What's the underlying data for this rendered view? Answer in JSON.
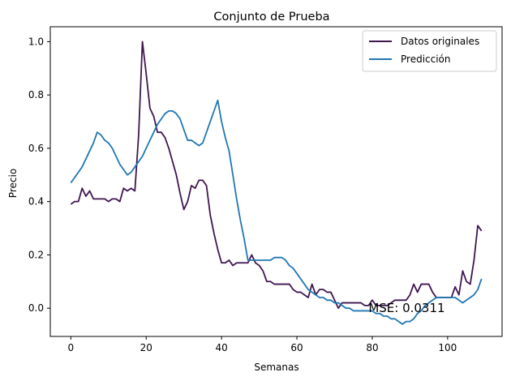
{
  "chart_data": {
    "type": "line",
    "title": "Conjunto de Prueba",
    "xlabel": "Semanas",
    "ylabel": "Precio",
    "xlim": [
      -5.45,
      114.45
    ],
    "ylim": [
      -0.106,
      1.056
    ],
    "x_ticks": [
      0,
      20,
      40,
      60,
      80,
      100
    ],
    "y_ticks": [
      0.0,
      0.2,
      0.4,
      0.6,
      0.8,
      1.0
    ],
    "x_tick_labels": [
      "0",
      "20",
      "40",
      "60",
      "80",
      "100"
    ],
    "y_tick_labels": [
      "0.0",
      "0.2",
      "0.4",
      "0.6",
      "0.8",
      "1.0"
    ],
    "grid": false,
    "legend": {
      "placement": "top-right"
    },
    "annotation": {
      "text": "MSE: 0.0311",
      "x": 79,
      "y": 0.0
    },
    "series": [
      {
        "name": "Datos originales",
        "color": "#3f1650",
        "x": [
          0,
          1,
          2,
          3,
          4,
          5,
          6,
          7,
          8,
          9,
          10,
          11,
          12,
          13,
          14,
          15,
          16,
          17,
          18,
          19,
          20,
          21,
          22,
          23,
          24,
          25,
          26,
          27,
          28,
          29,
          30,
          31,
          32,
          33,
          34,
          35,
          36,
          37,
          38,
          39,
          40,
          41,
          42,
          43,
          44,
          45,
          46,
          47,
          48,
          49,
          50,
          51,
          52,
          53,
          54,
          55,
          56,
          57,
          58,
          59,
          60,
          61,
          62,
          63,
          64,
          65,
          66,
          67,
          68,
          69,
          70,
          71,
          72,
          73,
          74,
          75,
          76,
          77,
          78,
          79,
          80,
          81,
          82,
          83,
          84,
          85,
          86,
          87,
          88,
          89,
          90,
          91,
          92,
          93,
          94,
          95,
          96,
          97,
          98,
          99,
          100,
          101,
          102,
          103,
          104,
          105,
          106,
          107,
          108,
          109
        ],
        "values": [
          0.39,
          0.4,
          0.4,
          0.45,
          0.42,
          0.44,
          0.41,
          0.41,
          0.41,
          0.41,
          0.4,
          0.41,
          0.41,
          0.4,
          0.45,
          0.44,
          0.45,
          0.44,
          0.65,
          1.0,
          0.88,
          0.75,
          0.72,
          0.66,
          0.66,
          0.64,
          0.6,
          0.55,
          0.5,
          0.43,
          0.37,
          0.4,
          0.46,
          0.45,
          0.48,
          0.48,
          0.46,
          0.35,
          0.28,
          0.22,
          0.17,
          0.17,
          0.18,
          0.16,
          0.17,
          0.17,
          0.17,
          0.17,
          0.2,
          0.17,
          0.16,
          0.14,
          0.1,
          0.1,
          0.09,
          0.09,
          0.09,
          0.09,
          0.09,
          0.07,
          0.06,
          0.06,
          0.05,
          0.04,
          0.09,
          0.05,
          0.07,
          0.07,
          0.06,
          0.06,
          0.03,
          0.0,
          0.02,
          0.02,
          0.02,
          0.02,
          0.02,
          0.02,
          0.01,
          0.01,
          0.03,
          0.01,
          0.01,
          0.01,
          0.01,
          0.02,
          0.03,
          0.03,
          0.03,
          0.03,
          0.05,
          0.09,
          0.06,
          0.09,
          0.09,
          0.09,
          0.06,
          0.04,
          0.04,
          0.04,
          0.04,
          0.04,
          0.08,
          0.05,
          0.14,
          0.1,
          0.09,
          0.18,
          0.31,
          0.29
        ]
      },
      {
        "name": "Predicción",
        "color": "#1f77b4",
        "x": [
          0,
          1,
          2,
          3,
          4,
          5,
          6,
          7,
          8,
          9,
          10,
          11,
          12,
          13,
          14,
          15,
          16,
          17,
          18,
          19,
          20,
          21,
          22,
          23,
          24,
          25,
          26,
          27,
          28,
          29,
          30,
          31,
          32,
          33,
          34,
          35,
          36,
          37,
          38,
          39,
          40,
          41,
          42,
          43,
          44,
          45,
          46,
          47,
          48,
          49,
          50,
          51,
          52,
          53,
          54,
          55,
          56,
          57,
          58,
          59,
          60,
          61,
          62,
          63,
          64,
          65,
          66,
          67,
          68,
          69,
          70,
          71,
          72,
          73,
          74,
          75,
          76,
          77,
          78,
          79,
          80,
          81,
          82,
          83,
          84,
          85,
          86,
          87,
          88,
          89,
          90,
          91,
          92,
          93,
          94,
          95,
          96,
          97,
          98,
          99,
          100,
          101,
          102,
          103,
          104,
          105,
          106,
          107,
          108,
          109
        ],
        "values": [
          0.47,
          0.49,
          0.51,
          0.53,
          0.56,
          0.59,
          0.62,
          0.66,
          0.65,
          0.63,
          0.62,
          0.6,
          0.57,
          0.54,
          0.52,
          0.5,
          0.51,
          0.53,
          0.55,
          0.57,
          0.6,
          0.63,
          0.66,
          0.69,
          0.71,
          0.73,
          0.74,
          0.74,
          0.73,
          0.71,
          0.67,
          0.63,
          0.63,
          0.62,
          0.61,
          0.62,
          0.66,
          0.7,
          0.74,
          0.78,
          0.7,
          0.64,
          0.59,
          0.5,
          0.41,
          0.33,
          0.26,
          0.18,
          0.18,
          0.18,
          0.18,
          0.18,
          0.18,
          0.18,
          0.19,
          0.19,
          0.19,
          0.18,
          0.16,
          0.15,
          0.13,
          0.11,
          0.09,
          0.07,
          0.06,
          0.05,
          0.04,
          0.04,
          0.03,
          0.03,
          0.02,
          0.02,
          0.01,
          0.0,
          0.0,
          -0.01,
          -0.01,
          -0.01,
          -0.01,
          -0.01,
          -0.01,
          -0.02,
          -0.02,
          -0.03,
          -0.03,
          -0.04,
          -0.04,
          -0.05,
          -0.06,
          -0.05,
          -0.05,
          -0.04,
          -0.02,
          -0.01,
          0.01,
          0.02,
          0.03,
          0.04,
          0.04,
          0.04,
          0.04,
          0.04,
          0.04,
          0.03,
          0.02,
          0.03,
          0.04,
          0.05,
          0.07,
          0.11
        ]
      }
    ]
  }
}
